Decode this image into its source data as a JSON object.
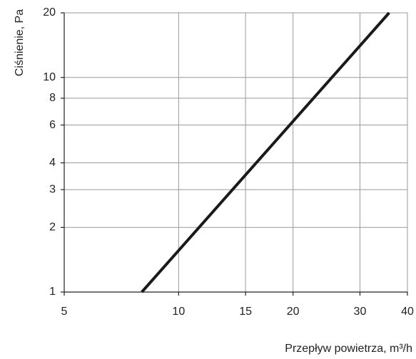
{
  "chart_data": {
    "type": "line",
    "x_label": "Przepływ powietrza, m³/h",
    "y_label": "Ciśnienie, Pa",
    "x": [
      8,
      35.8
    ],
    "series": [
      {
        "color": "#1a1a1a",
        "values": [
          1,
          20
        ]
      }
    ],
    "xlim": [
      5,
      40
    ],
    "xticks": [
      5,
      10,
      15,
      20,
      30,
      40
    ],
    "ylim": [
      1,
      20
    ],
    "yticks": [
      1,
      2,
      3,
      4,
      6,
      8,
      10,
      20
    ],
    "xscale": "log",
    "yscale": "log",
    "grid": true
  }
}
